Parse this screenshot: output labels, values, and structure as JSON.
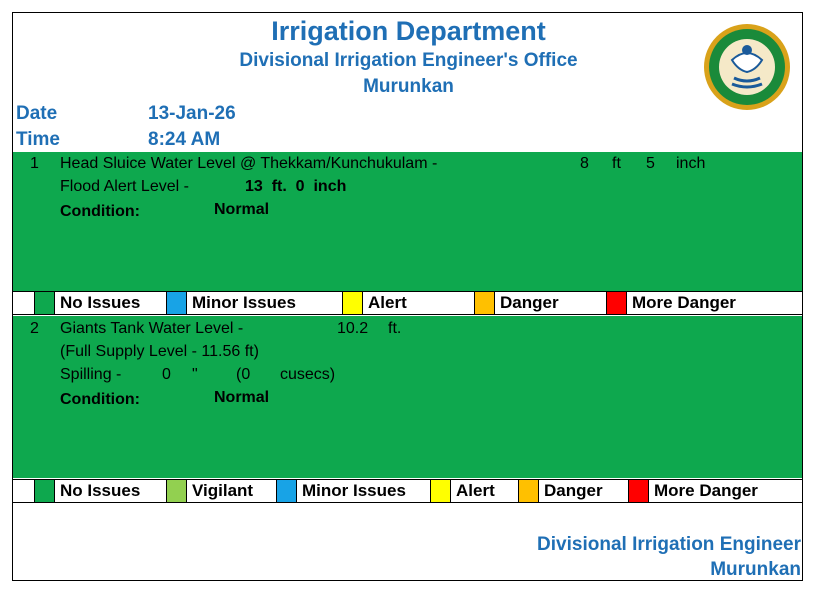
{
  "header": {
    "title": "Irrigation Department",
    "subtitle": "Divisional Irrigation Engineer's Office",
    "location": "Murunkan"
  },
  "meta": {
    "date_label": "Date",
    "date_value": "13-Jan-26",
    "time_label": "Time",
    "time_value": "8:24 AM"
  },
  "section1": {
    "index": "1",
    "line1_text": "Head Sluice Water Level @ Thekkam/Kunchukulam -",
    "level_ft": "8",
    "ft_unit": "ft",
    "level_inch": "5",
    "inch_unit": "inch",
    "alert_label": "Flood Alert Level -",
    "alert_value": "13  ft.  0  inch",
    "condition_label": "Condition:",
    "condition_value": "Normal",
    "status_color": "#0ea84e"
  },
  "legend1": [
    {
      "label": "No Issues",
      "color": "#0ea84e"
    },
    {
      "label": "Minor Issues",
      "color": "#18a3e6"
    },
    {
      "label": "Alert",
      "color": "#ffff00"
    },
    {
      "label": "Danger",
      "color": "#ffc000"
    },
    {
      "label": "More Danger",
      "color": "#ff0000"
    }
  ],
  "section2": {
    "index": "2",
    "line1_text": "Giants Tank Water Level -",
    "level_value": "10.2",
    "level_unit": "ft.",
    "fsl_text": "(Full Supply Level - 11.56 ft)",
    "spill_label": "Spilling -",
    "spill_value": "0",
    "spill_unit": "\"",
    "cusecs_open": "(0",
    "cusecs_unit": "cusecs)",
    "condition_label": "Condition:",
    "condition_value": "Normal",
    "status_color": "#0ea84e"
  },
  "legend2": [
    {
      "label": "No Issues",
      "color": "#0ea84e"
    },
    {
      "label": "Vigilant",
      "color": "#92d050"
    },
    {
      "label": "Minor Issues",
      "color": "#18a3e6"
    },
    {
      "label": "Alert",
      "color": "#ffff00"
    },
    {
      "label": "Danger",
      "color": "#ffc000"
    },
    {
      "label": "More Danger",
      "color": "#ff0000"
    }
  ],
  "footer": {
    "line1": "Divisional Irrigation Engineer",
    "line2": "Murunkan"
  },
  "colors": {
    "accent_blue": "#1f6fb5"
  }
}
